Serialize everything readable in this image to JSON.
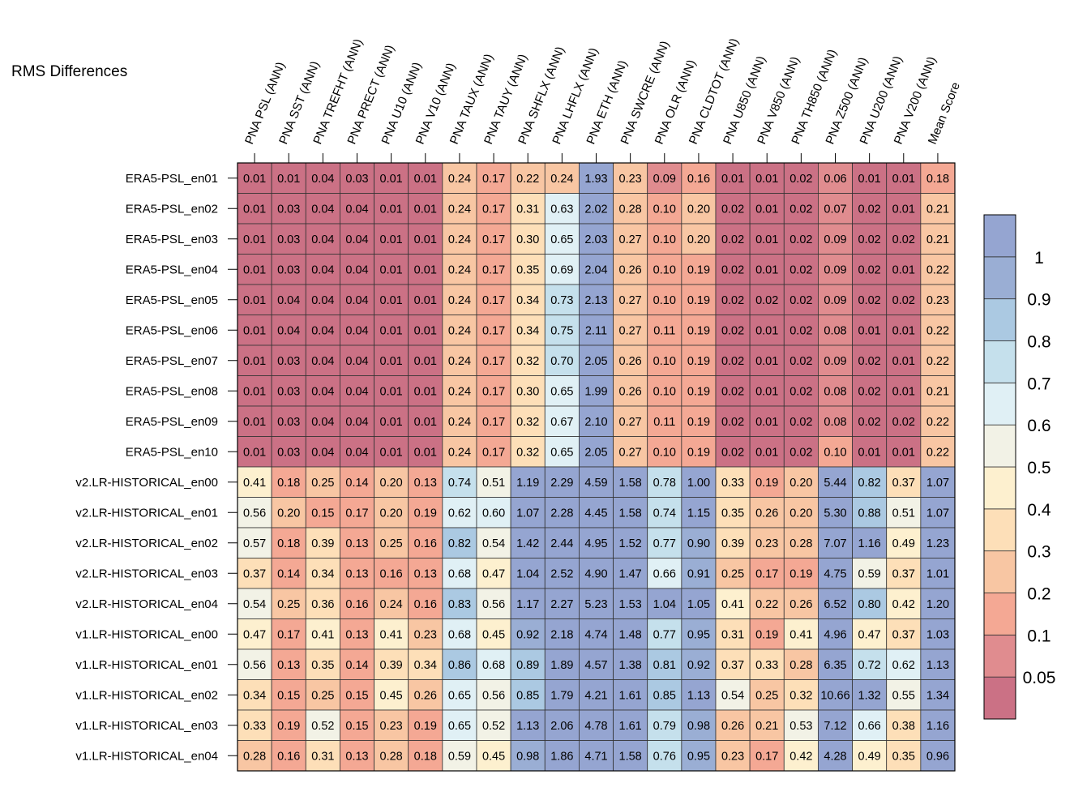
{
  "chart_data": {
    "type": "heatmap",
    "title": "RMS Differences",
    "columns": [
      "PNA PSL (ANN)",
      "PNA SST (ANN)",
      "PNA TREFHT (ANN)",
      "PNA PRECT (ANN)",
      "PNA U10 (ANN)",
      "PNA V10 (ANN)",
      "PNA TAUX (ANN)",
      "PNA TAUY (ANN)",
      "PNA SHFLX (ANN)",
      "PNA LHFLX (ANN)",
      "PNA ETH (ANN)",
      "PNA SWCRE (ANN)",
      "PNA OLR (ANN)",
      "PNA CLDTOT (ANN)",
      "PNA U850 (ANN)",
      "PNA V850 (ANN)",
      "PNA TH850 (ANN)",
      "PNA Z500 (ANN)",
      "PNA U200 (ANN)",
      "PNA V200 (ANN)",
      "Mean Score"
    ],
    "rows": [
      "ERA5-PSL_en01",
      "ERA5-PSL_en02",
      "ERA5-PSL_en03",
      "ERA5-PSL_en04",
      "ERA5-PSL_en05",
      "ERA5-PSL_en06",
      "ERA5-PSL_en07",
      "ERA5-PSL_en08",
      "ERA5-PSL_en09",
      "ERA5-PSL_en10",
      "v2.LR-HISTORICAL_en00",
      "v2.LR-HISTORICAL_en01",
      "v2.LR-HISTORICAL_en02",
      "v2.LR-HISTORICAL_en03",
      "v2.LR-HISTORICAL_en04",
      "v1.LR-HISTORICAL_en00",
      "v1.LR-HISTORICAL_en01",
      "v1.LR-HISTORICAL_en02",
      "v1.LR-HISTORICAL_en03",
      "v1.LR-HISTORICAL_en04"
    ],
    "values": [
      [
        "0.01",
        "0.01",
        "0.04",
        "0.03",
        "0.01",
        "0.01",
        "0.24",
        "0.17",
        "0.22",
        "0.24",
        "1.93",
        "0.23",
        "0.09",
        "0.16",
        "0.01",
        "0.01",
        "0.02",
        "0.06",
        "0.01",
        "0.01",
        "0.18"
      ],
      [
        "0.01",
        "0.03",
        "0.04",
        "0.04",
        "0.01",
        "0.01",
        "0.24",
        "0.17",
        "0.31",
        "0.63",
        "2.02",
        "0.28",
        "0.10",
        "0.20",
        "0.02",
        "0.01",
        "0.02",
        "0.07",
        "0.02",
        "0.01",
        "0.21"
      ],
      [
        "0.01",
        "0.03",
        "0.04",
        "0.04",
        "0.01",
        "0.01",
        "0.24",
        "0.17",
        "0.30",
        "0.65",
        "2.03",
        "0.27",
        "0.10",
        "0.20",
        "0.02",
        "0.01",
        "0.02",
        "0.09",
        "0.02",
        "0.02",
        "0.21"
      ],
      [
        "0.01",
        "0.03",
        "0.04",
        "0.04",
        "0.01",
        "0.01",
        "0.24",
        "0.17",
        "0.35",
        "0.69",
        "2.04",
        "0.26",
        "0.10",
        "0.19",
        "0.02",
        "0.01",
        "0.02",
        "0.09",
        "0.02",
        "0.01",
        "0.22"
      ],
      [
        "0.01",
        "0.04",
        "0.04",
        "0.04",
        "0.01",
        "0.01",
        "0.24",
        "0.17",
        "0.34",
        "0.73",
        "2.13",
        "0.27",
        "0.10",
        "0.19",
        "0.02",
        "0.02",
        "0.02",
        "0.09",
        "0.02",
        "0.02",
        "0.23"
      ],
      [
        "0.01",
        "0.04",
        "0.04",
        "0.04",
        "0.01",
        "0.01",
        "0.24",
        "0.17",
        "0.34",
        "0.75",
        "2.11",
        "0.27",
        "0.11",
        "0.19",
        "0.02",
        "0.01",
        "0.02",
        "0.08",
        "0.01",
        "0.01",
        "0.22"
      ],
      [
        "0.01",
        "0.03",
        "0.04",
        "0.04",
        "0.01",
        "0.01",
        "0.24",
        "0.17",
        "0.32",
        "0.70",
        "2.05",
        "0.26",
        "0.10",
        "0.19",
        "0.02",
        "0.01",
        "0.02",
        "0.09",
        "0.02",
        "0.01",
        "0.22"
      ],
      [
        "0.01",
        "0.03",
        "0.04",
        "0.04",
        "0.01",
        "0.01",
        "0.24",
        "0.17",
        "0.30",
        "0.65",
        "1.99",
        "0.26",
        "0.10",
        "0.19",
        "0.02",
        "0.01",
        "0.02",
        "0.08",
        "0.02",
        "0.01",
        "0.21"
      ],
      [
        "0.01",
        "0.03",
        "0.04",
        "0.04",
        "0.01",
        "0.01",
        "0.24",
        "0.17",
        "0.32",
        "0.67",
        "2.10",
        "0.27",
        "0.11",
        "0.19",
        "0.02",
        "0.01",
        "0.02",
        "0.08",
        "0.02",
        "0.02",
        "0.22"
      ],
      [
        "0.01",
        "0.03",
        "0.04",
        "0.04",
        "0.01",
        "0.01",
        "0.24",
        "0.17",
        "0.32",
        "0.65",
        "2.05",
        "0.27",
        "0.10",
        "0.19",
        "0.02",
        "0.01",
        "0.02",
        "0.10",
        "0.01",
        "0.01",
        "0.22"
      ],
      [
        "0.41",
        "0.18",
        "0.25",
        "0.14",
        "0.20",
        "0.13",
        "0.74",
        "0.51",
        "1.19",
        "2.29",
        "4.59",
        "1.58",
        "0.78",
        "1.00",
        "0.33",
        "0.19",
        "0.20",
        "5.44",
        "0.82",
        "0.37",
        "1.07"
      ],
      [
        "0.56",
        "0.20",
        "0.15",
        "0.17",
        "0.20",
        "0.19",
        "0.62",
        "0.60",
        "1.07",
        "2.28",
        "4.45",
        "1.58",
        "0.74",
        "1.15",
        "0.35",
        "0.26",
        "0.20",
        "5.30",
        "0.88",
        "0.51",
        "1.07"
      ],
      [
        "0.57",
        "0.18",
        "0.39",
        "0.13",
        "0.25",
        "0.16",
        "0.82",
        "0.54",
        "1.42",
        "2.44",
        "4.95",
        "1.52",
        "0.77",
        "0.90",
        "0.39",
        "0.23",
        "0.28",
        "7.07",
        "1.16",
        "0.49",
        "1.23"
      ],
      [
        "0.37",
        "0.14",
        "0.34",
        "0.13",
        "0.16",
        "0.13",
        "0.68",
        "0.47",
        "1.04",
        "2.52",
        "4.90",
        "1.47",
        "0.66",
        "0.91",
        "0.25",
        "0.17",
        "0.19",
        "4.75",
        "0.59",
        "0.37",
        "1.01"
      ],
      [
        "0.54",
        "0.25",
        "0.36",
        "0.16",
        "0.24",
        "0.16",
        "0.83",
        "0.56",
        "1.17",
        "2.27",
        "5.23",
        "1.53",
        "1.04",
        "1.05",
        "0.41",
        "0.22",
        "0.26",
        "6.52",
        "0.80",
        "0.42",
        "1.20"
      ],
      [
        "0.47",
        "0.17",
        "0.41",
        "0.13",
        "0.41",
        "0.23",
        "0.68",
        "0.45",
        "0.92",
        "2.18",
        "4.74",
        "1.48",
        "0.77",
        "0.95",
        "0.31",
        "0.19",
        "0.41",
        "4.96",
        "0.47",
        "0.37",
        "1.03"
      ],
      [
        "0.56",
        "0.13",
        "0.35",
        "0.14",
        "0.39",
        "0.34",
        "0.86",
        "0.68",
        "0.89",
        "1.89",
        "4.57",
        "1.38",
        "0.81",
        "0.92",
        "0.37",
        "0.33",
        "0.28",
        "6.35",
        "0.72",
        "0.62",
        "1.13"
      ],
      [
        "0.34",
        "0.15",
        "0.25",
        "0.15",
        "0.45",
        "0.26",
        "0.65",
        "0.56",
        "0.85",
        "1.79",
        "4.21",
        "1.61",
        "0.85",
        "1.13",
        "0.54",
        "0.25",
        "0.32",
        "10.66",
        "1.32",
        "0.55",
        "1.34"
      ],
      [
        "0.33",
        "0.19",
        "0.52",
        "0.15",
        "0.23",
        "0.19",
        "0.65",
        "0.52",
        "1.13",
        "2.06",
        "4.78",
        "1.61",
        "0.79",
        "0.98",
        "0.26",
        "0.21",
        "0.53",
        "7.12",
        "0.66",
        "0.38",
        "1.16"
      ],
      [
        "0.28",
        "0.16",
        "0.31",
        "0.13",
        "0.28",
        "0.18",
        "0.59",
        "0.45",
        "0.98",
        "1.86",
        "4.71",
        "1.58",
        "0.76",
        "0.95",
        "0.23",
        "0.17",
        "0.42",
        "4.28",
        "0.49",
        "0.35",
        "0.96"
      ]
    ],
    "colorbar": {
      "labels": [
        "1",
        "0.9",
        "0.8",
        "0.7",
        "0.6",
        "0.5",
        "0.4",
        "0.3",
        "0.2",
        "0.1",
        "0.05"
      ],
      "thresholds": [
        0.05,
        0.1,
        0.2,
        0.3,
        0.4,
        0.5,
        0.6,
        0.7,
        0.8,
        0.9,
        1
      ],
      "colors": [
        "#cb7185",
        "#e08c8f",
        "#f4a894",
        "#f8c6a3",
        "#fddfb8",
        "#fdf0cf",
        "#f2f2e6",
        "#e0f0f5",
        "#c5e0ec",
        "#abc9e2",
        "#9aaed4",
        "#95a5d1"
      ]
    }
  }
}
